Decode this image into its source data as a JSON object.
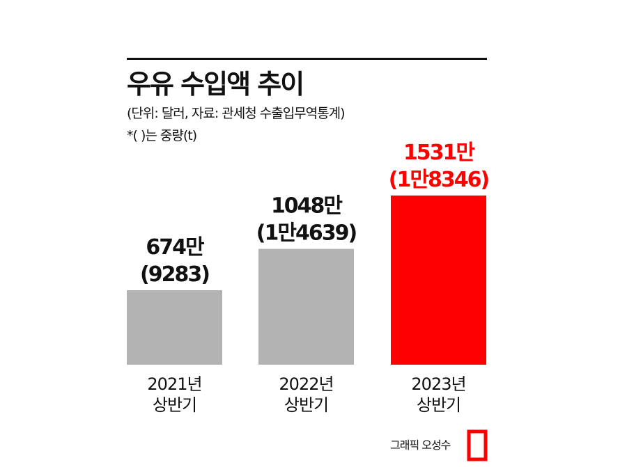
{
  "title": "우유 수입액 추이",
  "subtitle": "(단위: 달러, 자료: 관세청 수출입무역통계)",
  "note": "*( )는 중량(t)",
  "credit": "그래픽 오성수",
  "colors": {
    "default_bar": "#b3b3b3",
    "highlight_bar": "#ff0000",
    "text": "#111111",
    "highlight_text": "#ff0000"
  },
  "chart_data": {
    "type": "bar",
    "categories": [
      [
        "2021년",
        "상반기"
      ],
      [
        "2022년",
        "상반기"
      ],
      [
        "2023년",
        "상반기"
      ]
    ],
    "values": [
      6740000,
      10480000,
      15310000
    ],
    "value_labels": [
      "674만",
      "1048만",
      "1531만"
    ],
    "weights_t": [
      9283,
      14639,
      18346
    ],
    "weight_labels": [
      "(9283)",
      "(1만4639)",
      "(1만8346)"
    ],
    "highlight_index": 2,
    "title": "우유 수입액 추이",
    "ylim": [
      0,
      16500000
    ],
    "grid": false
  }
}
